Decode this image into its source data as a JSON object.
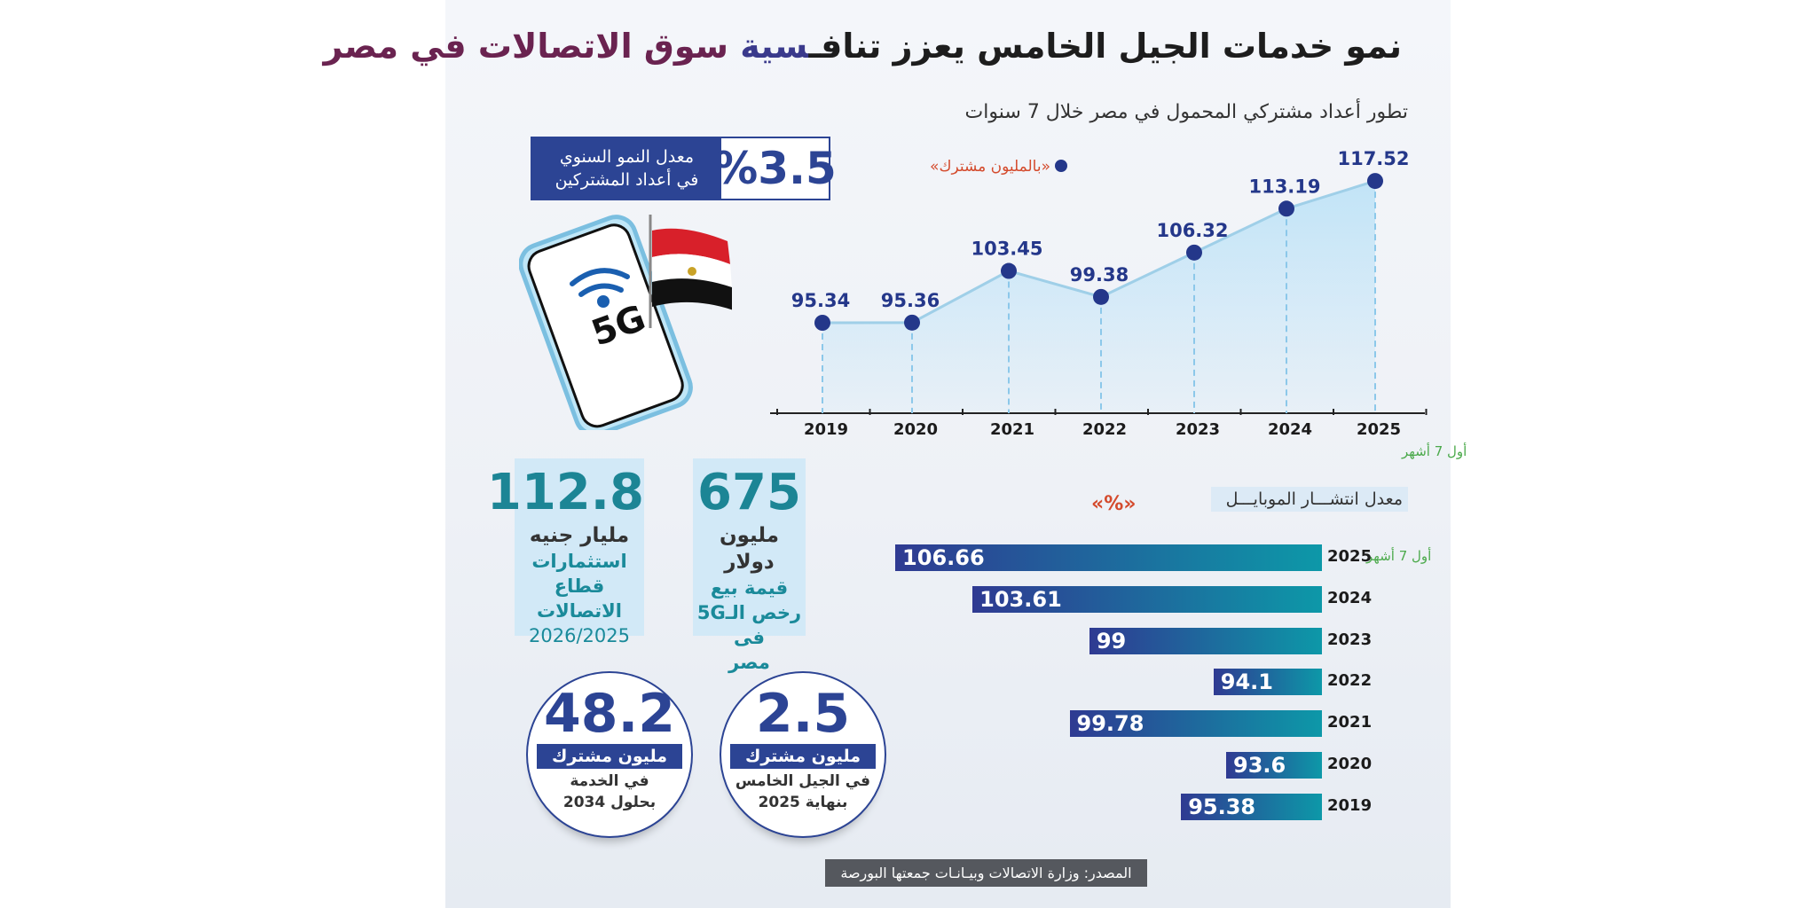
{
  "title": {
    "part1": "نمو خدمات الجيل الخامس يعزز تنافـ",
    "part2": "سية",
    "part3": " سوق الاتصالات في مصر"
  },
  "growth_box": {
    "value": "%3.5",
    "label_line1": "معدل النمو السنوي",
    "label_line2": "في أعداد المشتركين"
  },
  "phone_graphic": {
    "label": "5G",
    "icons": [
      "smartphone-icon",
      "wifi-icon",
      "egypt-flag-icon"
    ]
  },
  "stats": [
    {
      "value": "112.8",
      "unit": "مليار جنيه",
      "lines": [
        "استثمارات",
        "قطاع الاتصالات",
        "2026/2025"
      ]
    },
    {
      "value": "675",
      "unit": "مليون دولار",
      "lines": [
        "قيمة بيع",
        "رخص الـ5G فى",
        "مصر"
      ]
    }
  ],
  "circles": [
    {
      "value": "48.2",
      "band": "مليون مشترك",
      "lines": [
        "في الخدمة",
        "بحلول 2034"
      ]
    },
    {
      "value": "2.5",
      "band": "مليون مشترك",
      "lines": [
        "في الجيل الخامس",
        "بنهاية 2025"
      ]
    }
  ],
  "footer": "المصدر: وزارة الاتصالات وبيـانـات جمعتها البورصة",
  "chart_data": [
    {
      "type": "area",
      "title": "تطور أعداد مشتركي المحمول في مصر خلال 7 سنوات",
      "legend": "«بالمليون مشترك»",
      "categories": [
        "2019",
        "2020",
        "2021",
        "2022",
        "2023",
        "2024",
        "2025"
      ],
      "values": [
        95.34,
        95.36,
        103.45,
        99.38,
        106.32,
        113.19,
        117.52
      ],
      "labels": [
        "95.34",
        "95.36",
        "103.45",
        "99.38",
        "106.32",
        "113.19",
        "117.52"
      ],
      "note": "أول 7 أشهر",
      "colors": {
        "line": "#9fcfe8",
        "fill": "#bfe3f7",
        "marker": "#24378a"
      }
    },
    {
      "type": "bar",
      "orientation": "horizontal",
      "title": "معدل انتشـــار الموبايـــل",
      "unit": "«%»",
      "categories": [
        "2025",
        "2024",
        "2023",
        "2022",
        "2021",
        "2020",
        "2019"
      ],
      "values": [
        106.66,
        103.61,
        99,
        94.1,
        99.78,
        93.6,
        95.38
      ],
      "labels": [
        "106.66",
        "103.61",
        "99",
        "94.1",
        "99.78",
        "93.6",
        "95.38"
      ],
      "note": "أول 7 أشهر",
      "colors": {
        "start": "#2f3a92",
        "end": "#0d98a8"
      }
    }
  ]
}
